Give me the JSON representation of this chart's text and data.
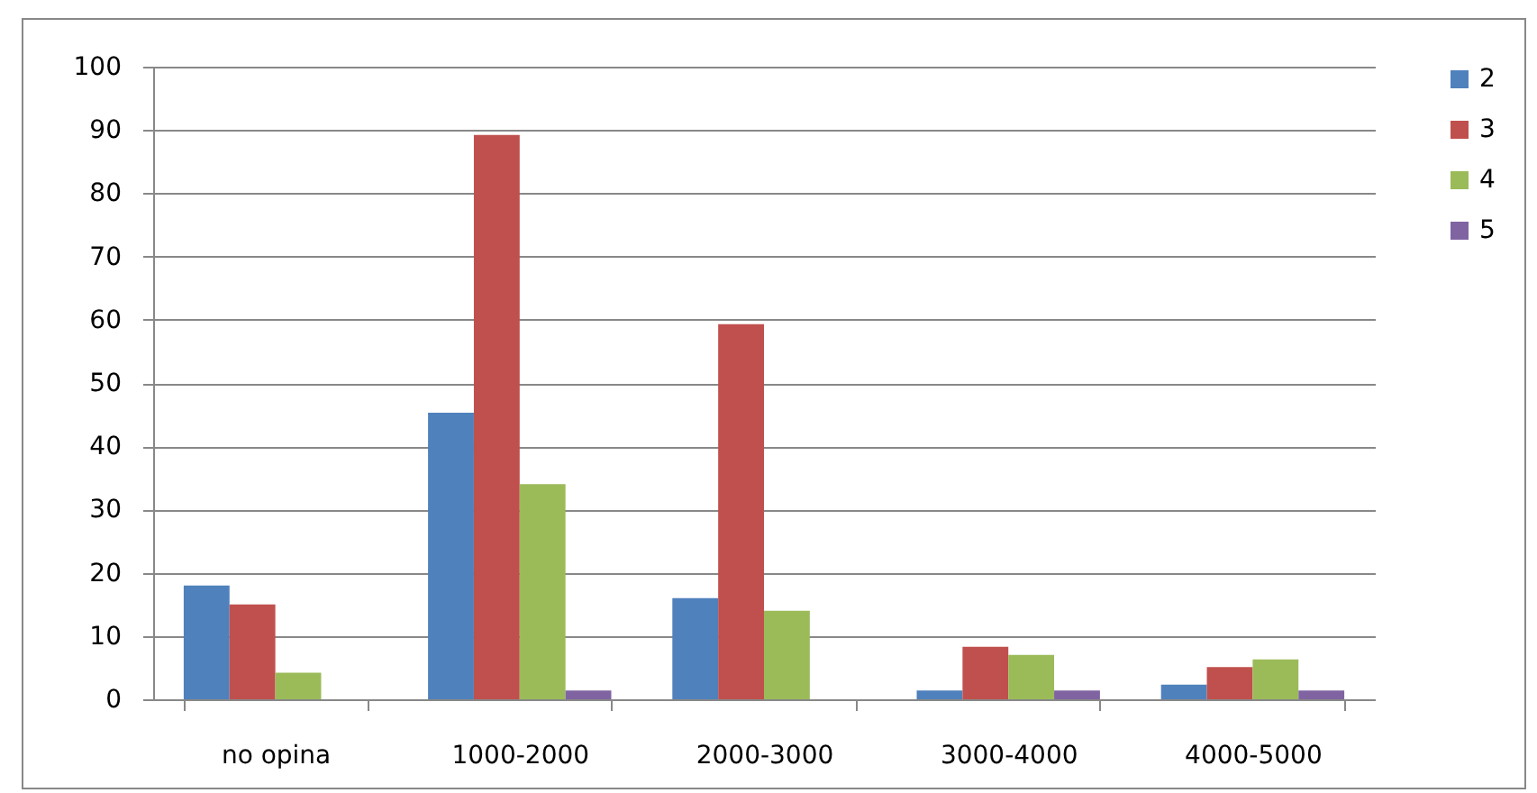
{
  "chart_data": {
    "type": "bar",
    "categories": [
      "no opina",
      "1000-2000",
      "2000-3000",
      "3000-4000",
      "4000-5000"
    ],
    "series": [
      {
        "name": "2",
        "color": "#4f81bd",
        "values": [
          18,
          45.3,
          16,
          1.4,
          2.3
        ]
      },
      {
        "name": "3",
        "color": "#c0504d",
        "values": [
          15,
          89.2,
          59.3,
          8.3,
          5.1
        ]
      },
      {
        "name": "4",
        "color": "#9bbb59",
        "values": [
          4.2,
          34,
          14,
          7,
          6.3
        ]
      },
      {
        "name": "5",
        "color": "#8064a2",
        "values": [
          null,
          1.4,
          null,
          1.4,
          1.4
        ]
      }
    ],
    "ylim": [
      0,
      100
    ],
    "yticks": [
      0,
      10,
      20,
      30,
      40,
      50,
      60,
      70,
      80,
      90,
      100
    ],
    "grid": "y",
    "legend": "right"
  }
}
